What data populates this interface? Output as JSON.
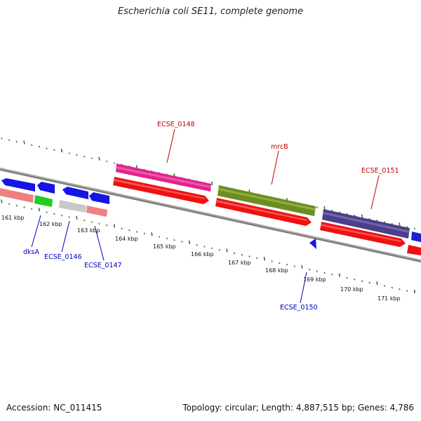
{
  "title": "Escherichia coli SE11, complete genome",
  "footer": {
    "accession": "Accession: NC_011415",
    "summary": "Topology: circular; Length: 4,887,515 bp; Genes: 4,786"
  },
  "colors": {
    "tick": "#2f7a1e",
    "backbone": "#8a8a8a",
    "cds": "#ee1111",
    "label_top": "#c00000",
    "label_bottom": "#0000b8"
  },
  "scale_labels": [
    "161 kbp",
    "162 kbp",
    "163 kbp",
    "164 kbp",
    "165 kbp",
    "166 kbp",
    "167 kbp",
    "168 kbp",
    "169 kbp",
    "170 kbp",
    "171 kbp"
  ],
  "gene_labels_top": [
    "ECSE_0148",
    "mrcB",
    "ECSE_0151"
  ],
  "gene_labels_bottom": [
    "dksA",
    "ECSE_0146",
    "ECSE_0147",
    "ECSE_0150"
  ]
}
